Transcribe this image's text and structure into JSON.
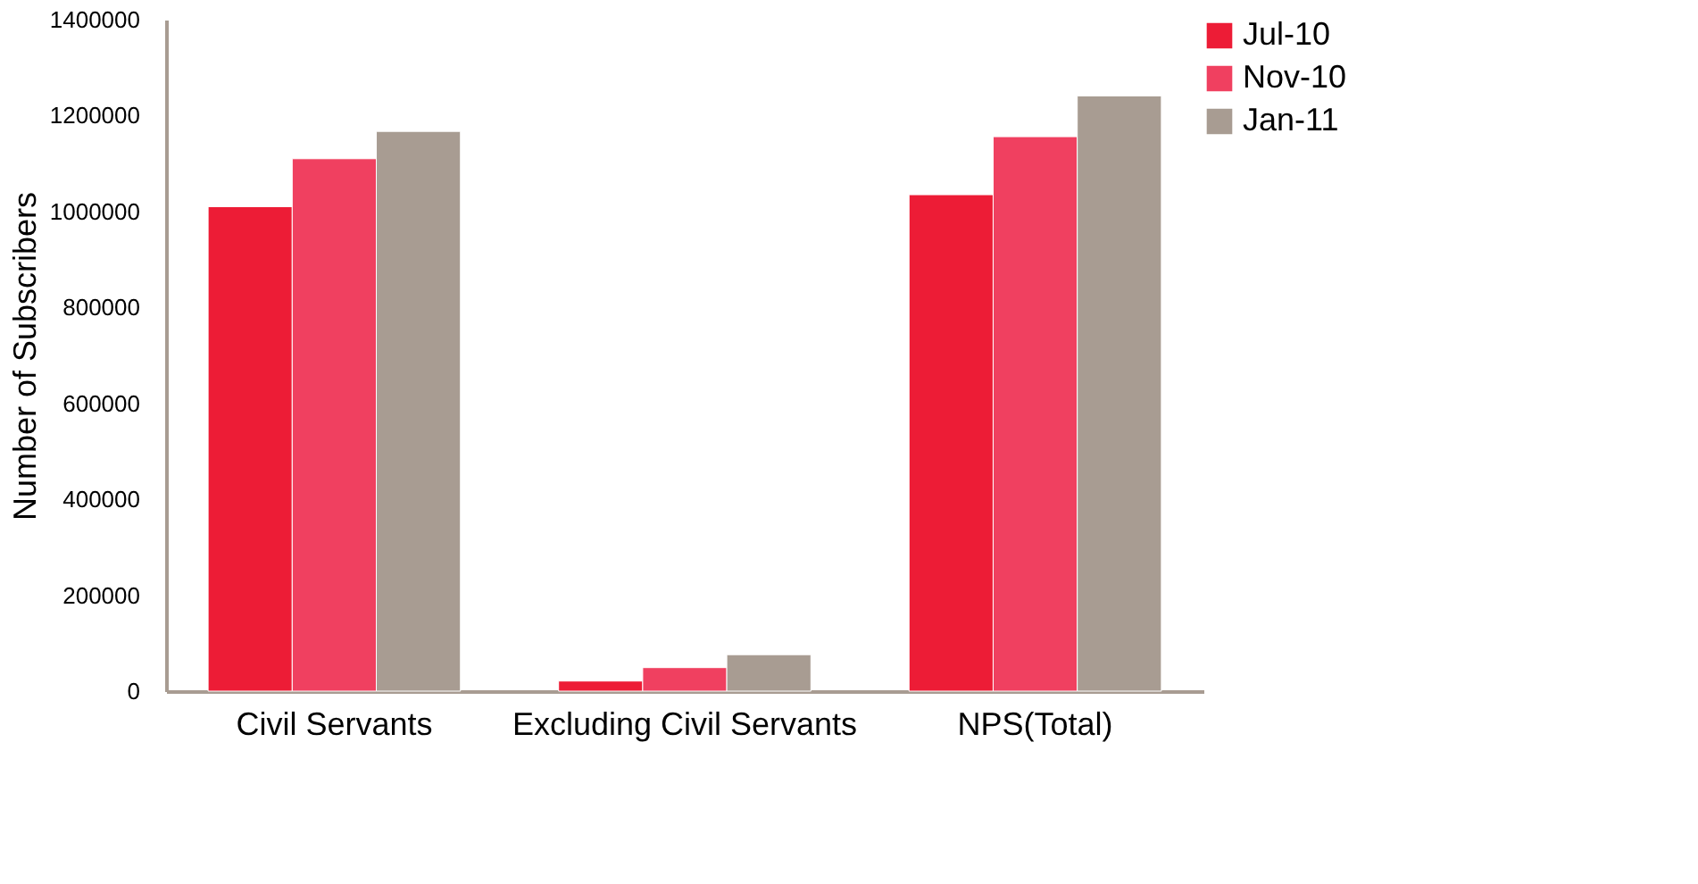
{
  "chart_data": {
    "type": "bar",
    "ylabel": "Number of Subscribers",
    "categories": [
      "Civil Servants",
      "Excluding Civil Servants",
      "NPS(Total)"
    ],
    "series": [
      {
        "name": "Jul-10",
        "color": "#ed1c36",
        "values": [
          1010000,
          21000,
          1035000
        ]
      },
      {
        "name": "Nov-10",
        "color": "#f04060",
        "values": [
          1110000,
          49000,
          1156000
        ]
      },
      {
        "name": "Jan-11",
        "color": "#a89c92",
        "values": [
          1167000,
          76000,
          1241000
        ]
      }
    ],
    "ylim": [
      0,
      1400000
    ],
    "yticks": [
      0,
      200000,
      400000,
      600000,
      800000,
      1000000,
      1200000,
      1400000
    ],
    "grid": false,
    "legend": "top right"
  }
}
